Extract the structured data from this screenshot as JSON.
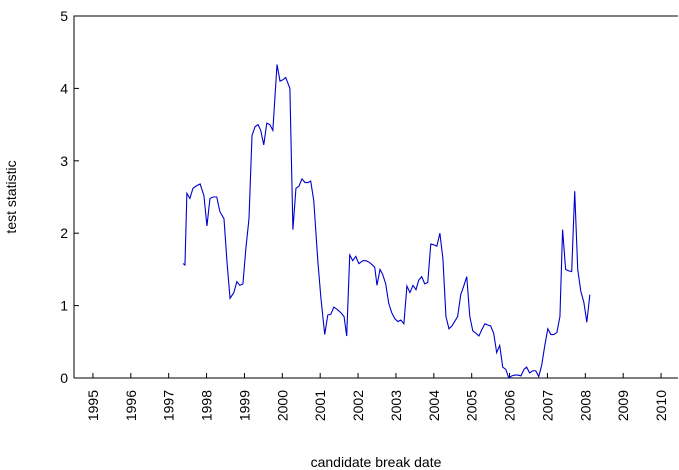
{
  "chart_data": {
    "type": "line",
    "xlabel": "candidate break date",
    "ylabel": "test statistic",
    "xlim": [
      1995,
      2011
    ],
    "xticks": [
      {
        "value": 1995.5,
        "label": "1995"
      },
      {
        "value": 1996.5,
        "label": "1996"
      },
      {
        "value": 1997.5,
        "label": "1997"
      },
      {
        "value": 1998.5,
        "label": "1998"
      },
      {
        "value": 1999.5,
        "label": "1999"
      },
      {
        "value": 2000.5,
        "label": "2000"
      },
      {
        "value": 2001.5,
        "label": "2001"
      },
      {
        "value": 2002.5,
        "label": "2002"
      },
      {
        "value": 2003.5,
        "label": "2003"
      },
      {
        "value": 2004.5,
        "label": "2004"
      },
      {
        "value": 2005.5,
        "label": "2005"
      },
      {
        "value": 2006.5,
        "label": "2006"
      },
      {
        "value": 2007.5,
        "label": "2007"
      },
      {
        "value": 2008.5,
        "label": "2008"
      },
      {
        "value": 2009.5,
        "label": "2009"
      },
      {
        "value": 2010.5,
        "label": "2010"
      }
    ],
    "ylim": [
      0,
      5
    ],
    "yticks": [
      0,
      1,
      2,
      3,
      4,
      5
    ],
    "grid": false,
    "x": [
      1997.88,
      1997.93,
      1997.98,
      1998.06,
      1998.14,
      1998.22,
      1998.33,
      1998.43,
      1998.51,
      1998.59,
      1998.67,
      1998.77,
      1998.85,
      1998.96,
      1999.04,
      1999.12,
      1999.22,
      1999.3,
      1999.38,
      1999.46,
      1999.54,
      1999.62,
      1999.7,
      1999.78,
      1999.86,
      1999.93,
      2000.01,
      2000.09,
      2000.17,
      2000.25,
      2000.36,
      2000.44,
      2000.52,
      2000.59,
      2000.7,
      2000.78,
      2000.86,
      2000.94,
      2001.02,
      2001.1,
      2001.18,
      2001.25,
      2001.33,
      2001.44,
      2001.52,
      2001.62,
      2001.7,
      2001.78,
      2001.86,
      2001.94,
      2002.05,
      2002.13,
      2002.2,
      2002.28,
      2002.36,
      2002.44,
      2002.52,
      2002.63,
      2002.71,
      2002.79,
      2002.86,
      2002.94,
      2003.0,
      2003.08,
      2003.15,
      2003.23,
      2003.31,
      2003.39,
      2003.47,
      2003.55,
      2003.63,
      2003.71,
      2003.79,
      2003.87,
      2003.95,
      2004.03,
      2004.1,
      2004.18,
      2004.26,
      2004.34,
      2004.42,
      2004.5,
      2004.58,
      2004.66,
      2004.74,
      2004.82,
      2004.9,
      2004.98,
      2005.05,
      2005.13,
      2005.21,
      2005.29,
      2005.37,
      2005.45,
      2005.53,
      2005.61,
      2005.69,
      2005.77,
      2005.85,
      2005.93,
      2006.0,
      2006.08,
      2006.16,
      2006.24,
      2006.32,
      2006.4,
      2006.48,
      2006.56,
      2006.64,
      2006.72,
      2006.8,
      2006.88,
      2006.95,
      2007.03,
      2007.11,
      2007.19,
      2007.27,
      2007.35,
      2007.43,
      2007.51,
      2007.59,
      2007.67,
      2007.75,
      2007.83,
      2007.9,
      2007.98,
      2008.06,
      2008.14,
      2008.22,
      2008.3,
      2008.38,
      2008.46,
      2008.54,
      2008.62
    ],
    "series": [
      {
        "color": "#0000cc",
        "values": [
          1.58,
          1.56,
          2.55,
          2.48,
          2.62,
          2.65,
          2.68,
          2.52,
          2.1,
          2.48,
          2.5,
          2.5,
          2.3,
          2.2,
          1.6,
          1.1,
          1.18,
          1.33,
          1.28,
          1.3,
          1.8,
          2.2,
          3.35,
          3.47,
          3.5,
          3.42,
          3.22,
          3.52,
          3.5,
          3.42,
          4.33,
          4.1,
          4.12,
          4.15,
          4.0,
          2.05,
          2.62,
          2.65,
          2.75,
          2.7,
          2.7,
          2.72,
          2.45,
          1.6,
          1.1,
          0.6,
          0.87,
          0.88,
          0.98,
          0.95,
          0.9,
          0.85,
          0.58,
          1.7,
          1.62,
          1.68,
          1.58,
          1.62,
          1.62,
          1.6,
          1.57,
          1.53,
          1.28,
          1.5,
          1.43,
          1.3,
          1.03,
          0.9,
          0.82,
          0.78,
          0.8,
          0.75,
          1.27,
          1.18,
          1.28,
          1.22,
          1.35,
          1.4,
          1.3,
          1.32,
          1.85,
          1.84,
          1.82,
          2.0,
          1.65,
          0.85,
          0.68,
          0.72,
          0.78,
          0.85,
          1.15,
          1.27,
          1.4,
          0.85,
          0.65,
          0.62,
          0.58,
          0.67,
          0.75,
          0.73,
          0.72,
          0.62,
          0.35,
          0.45,
          0.15,
          0.12,
          0.0,
          0.03,
          0.04,
          0.04,
          0.03,
          0.12,
          0.15,
          0.07,
          0.1,
          0.1,
          0.02,
          0.18,
          0.45,
          0.68,
          0.6,
          0.6,
          0.63,
          0.85,
          2.05,
          1.5,
          1.48,
          1.47,
          2.58,
          1.5,
          1.2,
          1.05,
          0.77,
          1.15
        ]
      }
    ]
  }
}
